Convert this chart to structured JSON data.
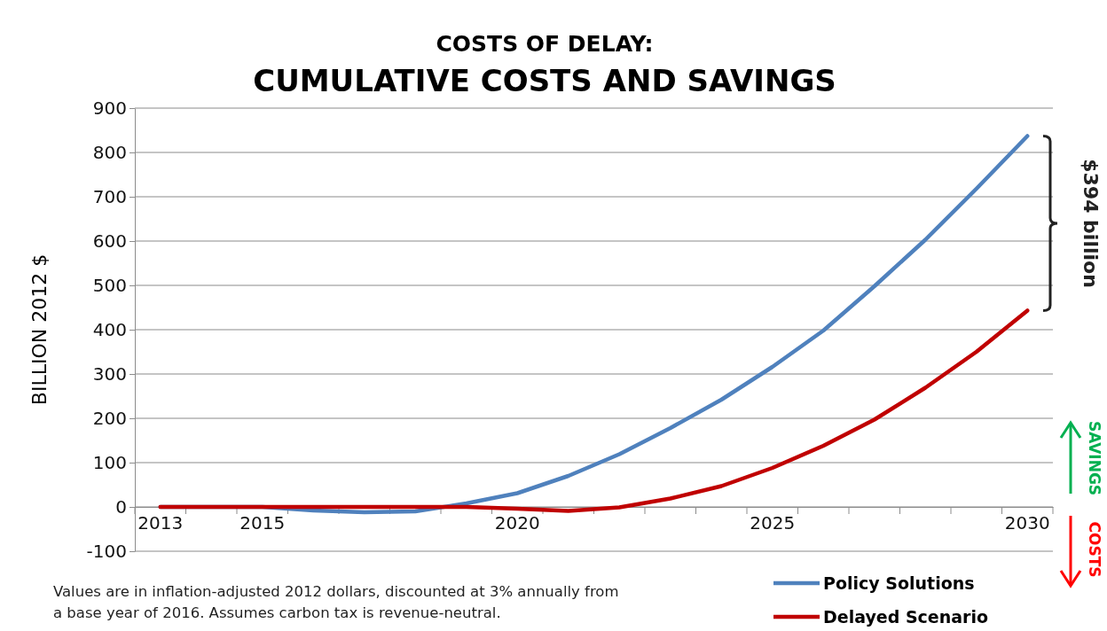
{
  "chart_data": {
    "type": "line",
    "title": "COSTS OF DELAY:",
    "subtitle": "CUMULATIVE COSTS AND SAVINGS",
    "ylabel": "BILLION 2012 $",
    "categories": [
      "2013",
      null,
      "2015",
      null,
      null,
      null,
      null,
      "2020",
      null,
      null,
      null,
      null,
      "2025",
      null,
      null,
      null,
      null,
      "2030"
    ],
    "series": [
      {
        "name": "Policy Solutions",
        "color": "#4f81bd",
        "values": [
          0,
          0,
          0,
          -8,
          -12,
          -10,
          8,
          31,
          70,
          119,
          178,
          242,
          316,
          398,
          498,
          603,
          718,
          837
        ]
      },
      {
        "name": "Delayed Scenario",
        "color": "#c00000",
        "values": [
          0,
          0,
          0,
          0,
          0,
          0,
          0,
          -4,
          -9,
          -1,
          19,
          47,
          88,
          138,
          197,
          269,
          350,
          443
        ]
      }
    ],
    "ylim": [
      -100,
      900
    ],
    "yticks": [
      -100,
      0,
      100,
      200,
      300,
      400,
      500,
      600,
      700,
      800,
      900
    ],
    "grid": "y",
    "legend": "bottom right",
    "marker": "none",
    "line_style": "solid",
    "annotations": [
      "$394 billion",
      "SAVINGS",
      "COSTS",
      "Values are in inflation-adjusted 2012 dollars, discounted at 3% annually from a base year of 2016.  Assumes carbon tax is revenue-neutral."
    ]
  }
}
